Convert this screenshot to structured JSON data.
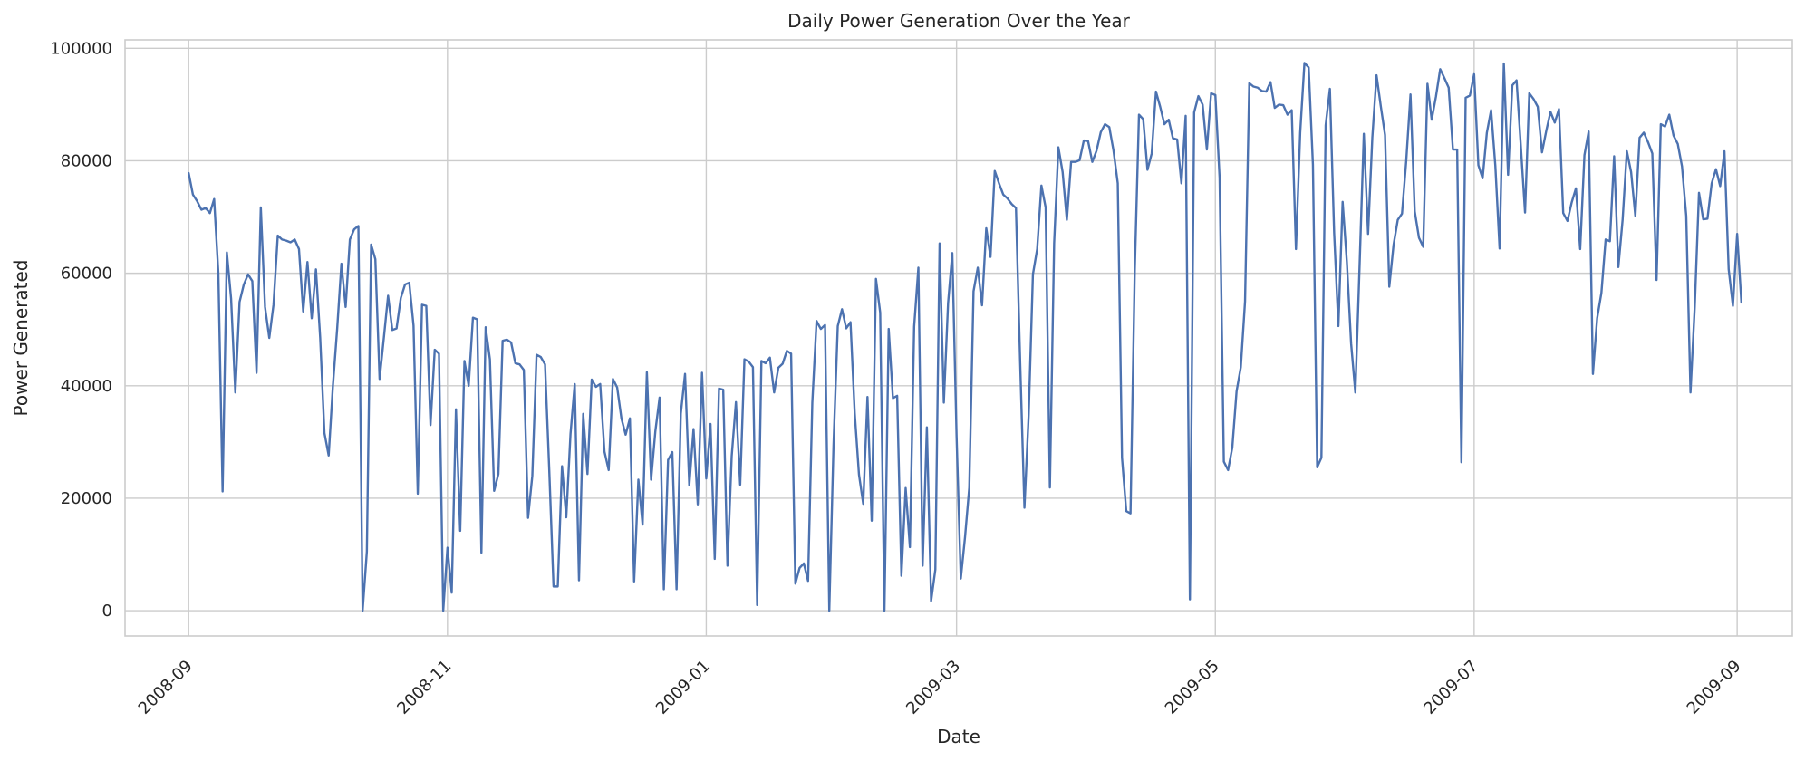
{
  "chart_data": {
    "type": "line",
    "title": "Daily Power Generation Over the Year",
    "xlabel": "Date",
    "ylabel": "Power Generated",
    "grid": true,
    "line_color": "#4c72b0",
    "xlim": [
      "2008-08-17",
      "2009-09-14"
    ],
    "ylim": [
      -4500,
      101500
    ],
    "yticks": [
      0,
      20000,
      40000,
      60000,
      80000,
      100000
    ],
    "xticks": [
      "2008-09-01",
      "2008-11-01",
      "2009-01-01",
      "2009-03-01",
      "2009-05-01",
      "2009-07-01",
      "2009-09-01"
    ],
    "xtick_labels": [
      "2008-09",
      "2008-11",
      "2009-01",
      "2009-03",
      "2009-05",
      "2009-07",
      "2009-09"
    ],
    "series": [
      {
        "x_start": "2008-09-01",
        "x_step_days": 1,
        "values": [
          77800,
          74000,
          72800,
          71300,
          71600,
          70700,
          73200,
          60000,
          21200,
          63700,
          55500,
          38800,
          54900,
          58000,
          59800,
          58600,
          42300,
          71700,
          54000,
          48500,
          54400,
          66700,
          66000,
          65800,
          65500,
          66000,
          64300,
          53200,
          62000,
          52000,
          60700,
          48500,
          31600,
          27600,
          40000,
          50100,
          61700,
          54000,
          66000,
          67800,
          68400,
          0,
          10500,
          65100,
          62500,
          41200,
          48500,
          56000,
          49900,
          50200,
          55600,
          58000,
          58300,
          50700,
          20800,
          54400,
          54200,
          33000,
          46400,
          45700,
          0,
          11200,
          3200,
          35800,
          14200,
          44400,
          40000,
          52100,
          51800,
          10300,
          50400,
          44700,
          21300,
          24300,
          48000,
          48200,
          47700,
          44000,
          43800,
          42800,
          16500,
          24000,
          45500,
          45100,
          43800,
          24900,
          4300,
          4300,
          25700,
          16600,
          31400,
          40300,
          5400,
          35000,
          24300,
          41100,
          39800,
          40300,
          28300,
          25000,
          41200,
          39700,
          34200,
          31300,
          34200,
          5200,
          23300,
          15300,
          42400,
          23300,
          31900,
          37900,
          3800,
          26800,
          28200,
          3800,
          35000,
          42100,
          22300,
          32300,
          18900,
          42300,
          23500,
          33200,
          9200,
          39500,
          39300,
          8000,
          27500,
          37100,
          22400,
          44700,
          44300,
          43300,
          1000,
          44400,
          44000,
          45000,
          38800,
          43200,
          43900,
          46200,
          45700,
          4800,
          7600,
          8400,
          5300,
          37000,
          51500,
          50100,
          50800,
          0,
          29400,
          50600,
          53600,
          50200,
          51300,
          35100,
          24200,
          19000,
          38000,
          16000,
          59000,
          53000,
          0,
          50100,
          37800,
          38200,
          6200,
          21800,
          11300,
          50500,
          61000,
          8000,
          32600,
          1700,
          7300,
          65300,
          37000,
          54700,
          63600,
          31100,
          5700,
          13100,
          21900,
          56800,
          61000,
          54300,
          68000,
          62900,
          78200,
          76000,
          74000,
          73300,
          72300,
          71600,
          44000,
          18300,
          34800,
          59800,
          64300,
          75600,
          71700,
          21900,
          65300,
          82400,
          78000,
          69500,
          79800,
          79800,
          80100,
          83600,
          83500,
          79800,
          81800,
          85100,
          86500,
          86000,
          81800,
          76000,
          27200,
          17700,
          17300,
          60300,
          88200,
          87400,
          78400,
          81300,
          92300,
          89600,
          86500,
          87300,
          84000,
          83800,
          76000,
          88000,
          2000,
          88600,
          91500,
          90000,
          82000,
          92000,
          91700,
          77000,
          26500,
          25000,
          29000,
          39000,
          43300,
          55000,
          93800,
          93200,
          93000,
          92400,
          92300,
          94000,
          89400,
          90000,
          89900,
          88200,
          89000,
          64300,
          85000,
          97400,
          96600,
          79300,
          25500,
          27200,
          86300,
          92800,
          67200,
          50600,
          72700,
          62000,
          47500,
          38800,
          61400,
          84800,
          67000,
          84100,
          95200,
          89700,
          84600,
          57600,
          65000,
          69500,
          70600,
          80000,
          91800,
          71000,
          66300,
          64700,
          93700,
          87300,
          91400,
          96300,
          94700,
          93000,
          82000,
          82000,
          26400,
          91200,
          91600,
          95400,
          79200,
          76900,
          85000,
          89000,
          79100,
          64400,
          97300,
          77500,
          93400,
          94300,
          82700,
          70800,
          92000,
          91000,
          89600,
          81500,
          85300,
          88700,
          86800,
          89200,
          70700,
          69300,
          72600,
          75100,
          64300,
          81000,
          85200,
          42100,
          52000,
          56500,
          66000,
          65700,
          80800,
          61100,
          69500,
          81700,
          78000,
          70200,
          84100,
          85000,
          83300,
          81300,
          58800,
          86500,
          86100,
          88200,
          84500,
          83000,
          79000,
          70200,
          38800,
          54000,
          74300,
          69600,
          69700,
          76000,
          78500,
          75500,
          81700,
          60700,
          54200,
          67000,
          54800
        ]
      }
    ]
  }
}
